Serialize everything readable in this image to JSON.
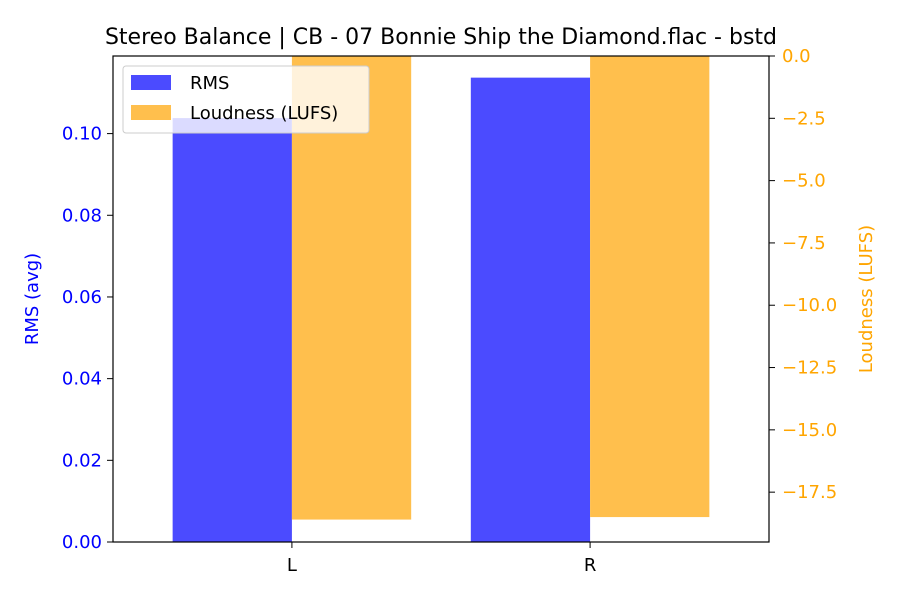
{
  "chart_data": {
    "type": "bar",
    "title": "Stereo Balance | CB - 07 Bonnie Ship the Diamond.flac - bstd",
    "categories": [
      "L",
      "R"
    ],
    "xlabel": "",
    "y_left": {
      "label": "RMS (avg)",
      "range": [
        0.0,
        0.119
      ],
      "ticks": [
        "0.00",
        "0.02",
        "0.04",
        "0.06",
        "0.08",
        "0.10"
      ],
      "tick_values": [
        0.0,
        0.02,
        0.04,
        0.06,
        0.08,
        0.1
      ],
      "color": "#0000ff"
    },
    "y_right": {
      "label": "Loudness (LUFS)",
      "range": [
        -19.5,
        0.0
      ],
      "ticks": [
        "0.0",
        "−2.5",
        "−5.0",
        "−7.5",
        "−10.0",
        "−12.5",
        "−15.0",
        "−17.5"
      ],
      "tick_values": [
        0.0,
        -2.5,
        -5.0,
        -7.5,
        -10.0,
        -12.5,
        -15.0,
        -17.5
      ],
      "color": "#ffa500"
    },
    "series": [
      {
        "name": "RMS",
        "axis": "left",
        "color": "#4b4bff",
        "values": [
          0.1038,
          0.1137
        ]
      },
      {
        "name": "Loudness (LUFS)",
        "axis": "right",
        "color": "#ffbf4d",
        "values": [
          -18.6,
          -18.5
        ]
      }
    ],
    "legend_position": "top-left",
    "grid": false
  }
}
